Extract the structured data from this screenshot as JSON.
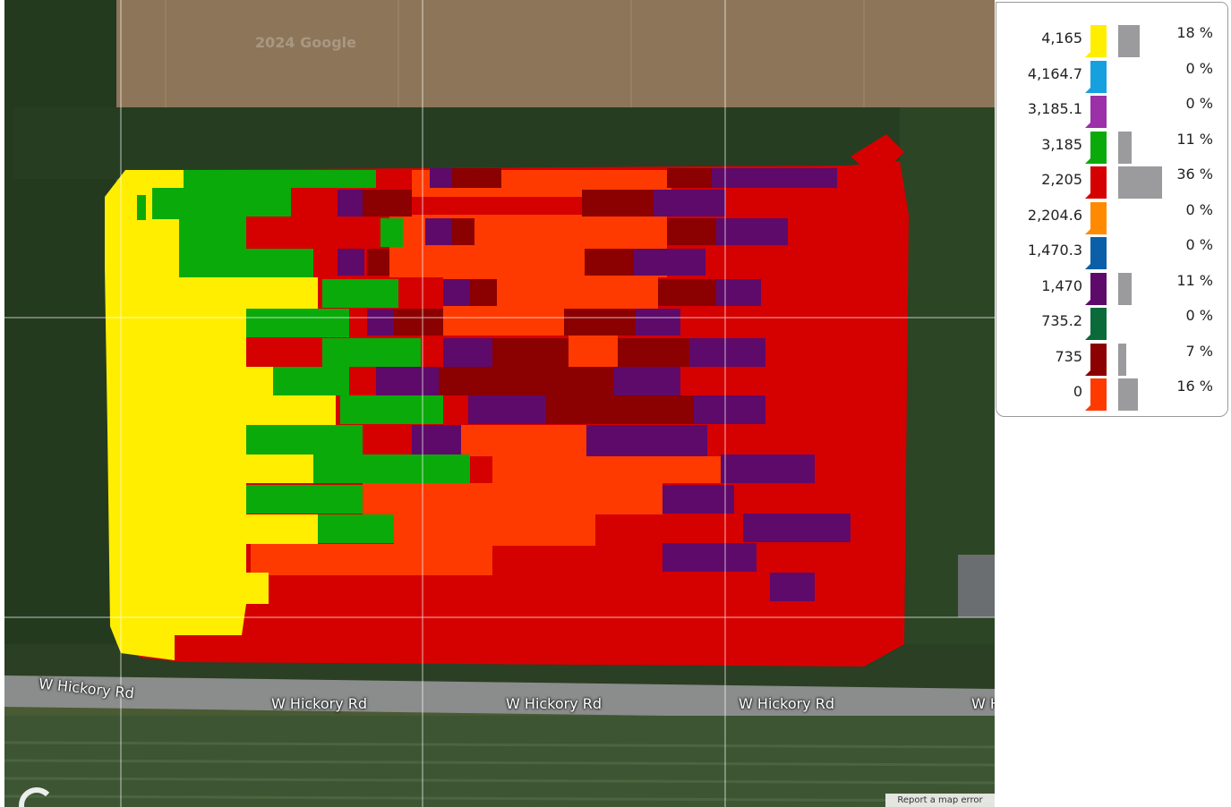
{
  "map": {
    "copyright": "2024 Google",
    "report_link": "Report a map error",
    "roads": [
      "W Hickory Rd",
      "W Hickory Rd",
      "W Hickory Rd",
      "W Hickory Rd",
      "W H"
    ],
    "field_colors": {
      "yellow": "#ffee00",
      "green": "#0aaa0a",
      "red": "#d50000",
      "orange_red": "#ff3a00",
      "purple": "#5e0a6a",
      "dark_red": "#8b0000"
    }
  },
  "legend": {
    "items": [
      {
        "value": "4,165",
        "color": "#ffee00",
        "percent": "18 %",
        "share": 18
      },
      {
        "value": "4,164.7",
        "color": "#17a0e0",
        "percent": "0 %",
        "share": 0
      },
      {
        "value": "3,185.1",
        "color": "#9b30a8",
        "percent": "0 %",
        "share": 0
      },
      {
        "value": "3,185",
        "color": "#0aaa0a",
        "percent": "11 %",
        "share": 11
      },
      {
        "value": "2,205",
        "color": "#d50000",
        "percent": "36 %",
        "share": 36
      },
      {
        "value": "2,204.6",
        "color": "#ff8a00",
        "percent": "0 %",
        "share": 0
      },
      {
        "value": "1,470.3",
        "color": "#0a5fa8",
        "percent": "0 %",
        "share": 0
      },
      {
        "value": "1,470",
        "color": "#5e0a6a",
        "percent": "11 %",
        "share": 11
      },
      {
        "value": "735.2",
        "color": "#0a6a3a",
        "percent": "0 %",
        "share": 0
      },
      {
        "value": "735",
        "color": "#8b0000",
        "percent": "7 %",
        "share": 7
      },
      {
        "value": "0",
        "color": "#ff3a00",
        "percent": "16 %",
        "share": 16
      }
    ]
  }
}
